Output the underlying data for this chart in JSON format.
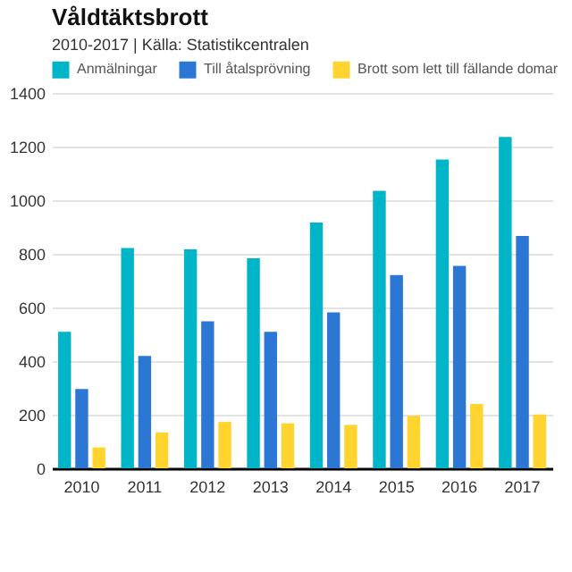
{
  "chart_data": {
    "type": "bar",
    "title": "Våldtäktsbrott",
    "subtitle": "2010-2017 | Källa: Statistikcentralen",
    "categories": [
      "2010",
      "2011",
      "2012",
      "2013",
      "2014",
      "2015",
      "2016",
      "2017"
    ],
    "series": [
      {
        "name": "Anmälningar",
        "color": "#00b5c8",
        "values": [
          509,
          822,
          817,
          783,
          917,
          1035,
          1152,
          1236
        ]
      },
      {
        "name": "Till åtalsprövning",
        "color": "#2c76d4",
        "values": [
          296,
          419,
          548,
          509,
          582,
          721,
          755,
          867
        ]
      },
      {
        "name": "Brott som lett till fällande domar",
        "color": "#ffd42f",
        "values": [
          78,
          134,
          173,
          168,
          162,
          196,
          240,
          201
        ]
      }
    ],
    "ylim": [
      0,
      1400
    ],
    "yticks": [
      0,
      200,
      400,
      600,
      800,
      1000,
      1200,
      1400
    ],
    "grid": "y",
    "legend": "top left"
  }
}
